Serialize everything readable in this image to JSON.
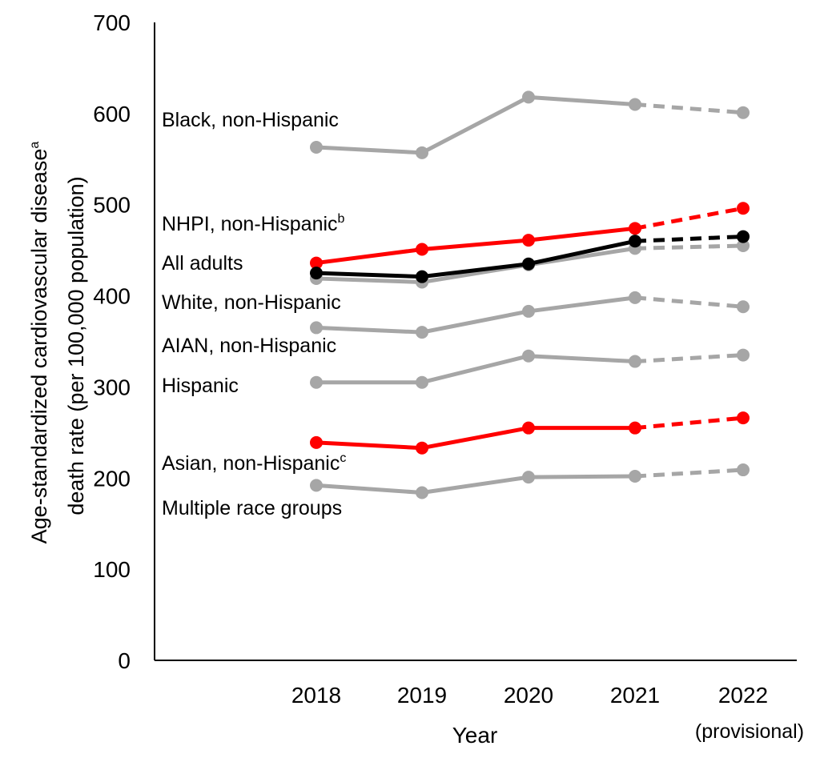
{
  "chart_data": {
    "type": "line",
    "x": [
      "2018",
      "2019",
      "2020",
      "2021",
      "2022"
    ],
    "x_sublabels": [
      "",
      "",
      "",
      "",
      "(provisional)"
    ],
    "xlabel": "Year",
    "ylabel_line1": "Age-standardized cardiovascular disease",
    "ylabel_line1_sup": "a",
    "ylabel_line2": "death rate (per 100,000 population)",
    "ylim": [
      0,
      700
    ],
    "yticks": [
      "0",
      "100",
      "200",
      "300",
      "400",
      "500",
      "600",
      "700"
    ],
    "grid": false,
    "dashed_from_index": 3,
    "series": [
      {
        "name": "Black, non-Hispanic",
        "sup": "",
        "color": "#a6a6a6",
        "values": [
          563,
          557,
          618,
          610,
          601
        ]
      },
      {
        "name": "White, non-Hispanic",
        "sup": "",
        "color": "#a6a6a6",
        "values": [
          419,
          415,
          434,
          452,
          455
        ]
      },
      {
        "name": "AIAN, non-Hispanic",
        "sup": "",
        "color": "#a6a6a6",
        "values": [
          365,
          360,
          383,
          398,
          388
        ]
      },
      {
        "name": "Hispanic",
        "sup": "",
        "color": "#a6a6a6",
        "values": [
          305,
          305,
          334,
          328,
          335
        ]
      },
      {
        "name": "Multiple race groups",
        "sup": "",
        "color": "#a6a6a6",
        "values": [
          192,
          184,
          201,
          202,
          209
        ]
      },
      {
        "name": "Asian, non-Hispanic",
        "sup": "c",
        "color": "#ff0000",
        "values": [
          239,
          233,
          255,
          255,
          266
        ]
      },
      {
        "name": "NHPI, non-Hispanic",
        "sup": "b",
        "color": "#ff0000",
        "values": [
          436,
          451,
          461,
          474,
          496
        ]
      },
      {
        "name": "All adults",
        "sup": "",
        "color": "#000000",
        "values": [
          425,
          421,
          435,
          460,
          465
        ]
      }
    ]
  }
}
